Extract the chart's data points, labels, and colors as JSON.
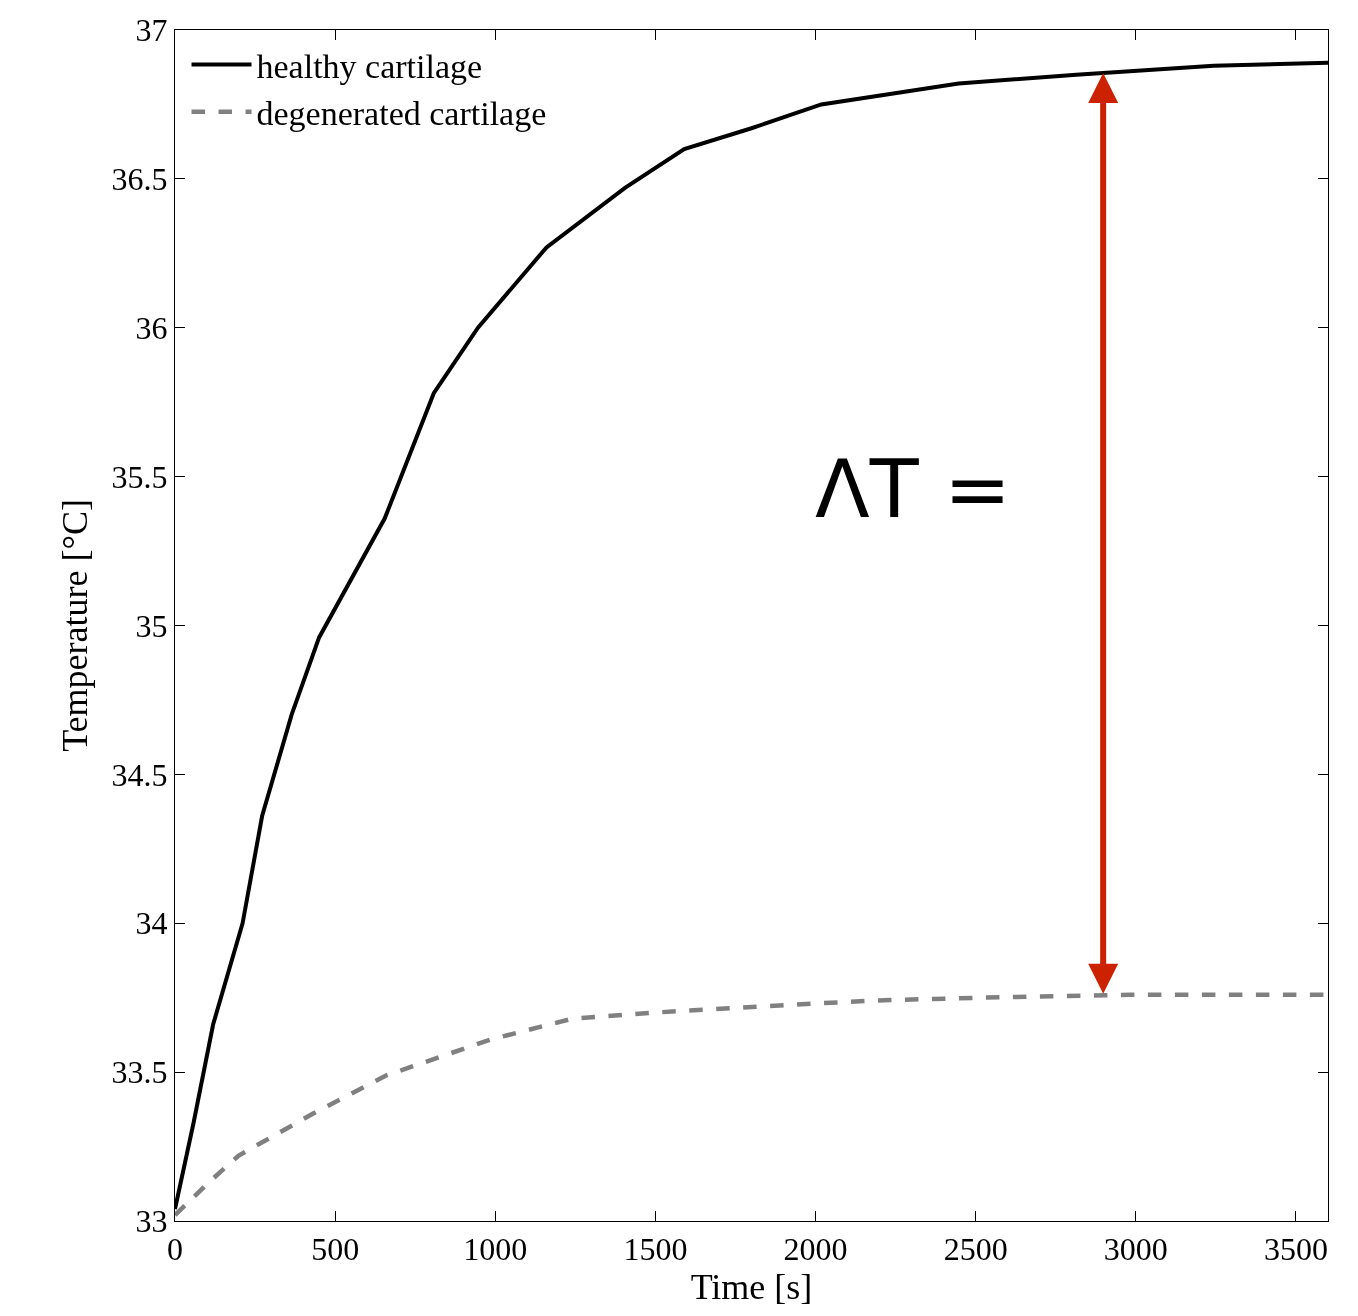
{
  "chart_data": {
    "type": "line",
    "xlabel": "Time [s]",
    "ylabel": "Temperature [°C]",
    "xlim": [
      0,
      3600
    ],
    "ylim": [
      33,
      37
    ],
    "xticks": [
      0,
      500,
      1000,
      1500,
      2000,
      2500,
      3000,
      3500
    ],
    "yticks": [
      33,
      33.5,
      34,
      34.5,
      35,
      35.5,
      36,
      36.5,
      37
    ],
    "legend": "top left",
    "series": [
      {
        "name": "healthy cartilage",
        "color": "#000000",
        "line_style": "solid",
        "x": [
          0,
          58,
          119,
          211,
          272,
          364,
          450,
          655,
          808,
          946,
          1160,
          1405,
          1590,
          1800,
          2018,
          2447,
          2814,
          3243,
          3600
        ],
        "values": [
          33.04,
          33.33,
          33.66,
          34.0,
          34.36,
          34.7,
          34.96,
          35.36,
          35.78,
          36.0,
          36.27,
          36.47,
          36.6,
          36.67,
          36.75,
          36.82,
          36.85,
          36.88,
          36.89
        ]
      },
      {
        "name": "degenerated cartilage",
        "color": "#808080",
        "line_style": "dashed",
        "x": [
          0,
          106,
          199,
          430,
          662,
          987,
          1243,
          1497,
          1822,
          2170,
          2517,
          2982,
          3600
        ],
        "values": [
          33.02,
          33.13,
          33.22,
          33.36,
          33.49,
          33.61,
          33.68,
          33.7,
          33.72,
          33.74,
          33.75,
          33.76,
          33.76
        ]
      }
    ],
    "annotations": [
      "ΛT ="
    ]
  }
}
